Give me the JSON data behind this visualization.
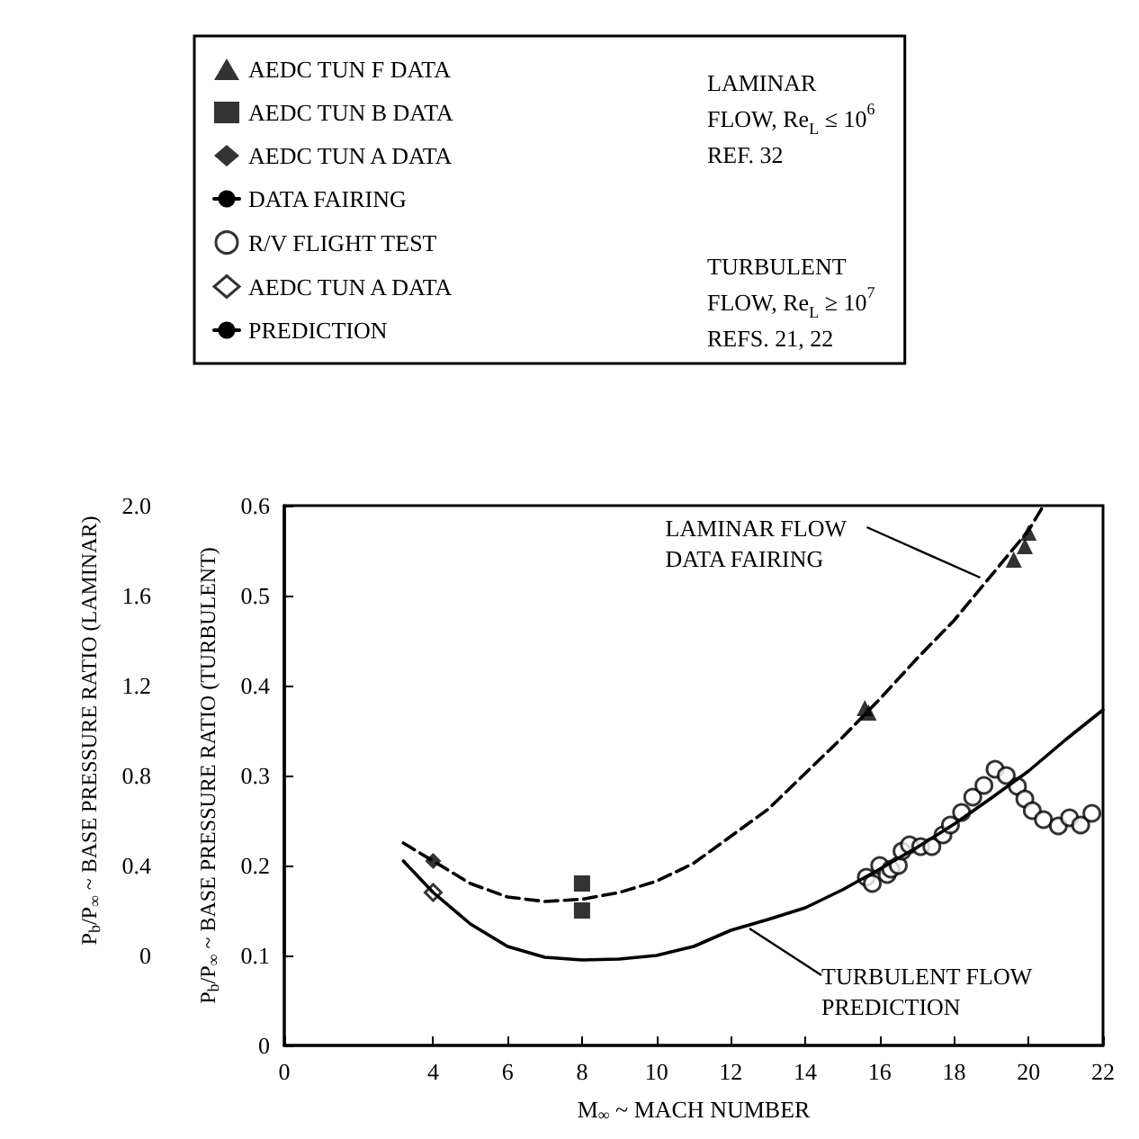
{
  "chart_data": {
    "type": "scatter",
    "xlabel": "M$_{∞}$ ~ MACH NUMBER",
    "ylabel": "P$_{b}$/P$_{∞}$ ~ BASE PRESSURE RATIO (TURBULENT)",
    "y2label": "P$_{b}$/P$_{∞}$ ~ BASE PRESSURE RATIO (LAMINAR)",
    "xlim": [
      0,
      22
    ],
    "xticks": [
      0,
      4,
      6,
      8,
      10,
      12,
      14,
      16,
      18,
      20,
      22
    ],
    "ylim": [
      0,
      0.6
    ],
    "yticks": [
      0,
      0.1,
      0.2,
      0.3,
      0.4,
      0.5,
      0.6
    ],
    "y2lim": [
      0,
      2.0
    ],
    "y2ticks": [
      0,
      0.4,
      0.8,
      1.2,
      1.6,
      {
        "value": 2,
        "label": "2.0"
      }
    ],
    "grid": false,
    "legend": "top",
    "series": [
      {
        "name": "AEDC TUN F DATA",
        "axis": "y2",
        "marker": "triangle",
        "color": "#000000",
        "x": [
          15.6,
          15.7,
          19.6,
          19.9,
          20.0
        ],
        "values": [
          1.1,
          1.08,
          1.76,
          1.82,
          1.88
        ]
      },
      {
        "name": "AEDC TUN B DATA",
        "axis": "y2",
        "marker": "square",
        "color": "#000000",
        "x": [
          8,
          8
        ],
        "values": [
          0.32,
          0.2
        ]
      },
      {
        "name": "AEDC TUN A DATA",
        "axis": "y2",
        "marker": "diamond",
        "color": "#000000",
        "x": [
          4
        ],
        "values": [
          0.42
        ]
      },
      {
        "name": "DATA FAIRING",
        "type": "line",
        "axis": "y2",
        "marker": "none",
        "line_style": "dashed",
        "color": "#000000",
        "x": [
          3.2,
          4,
          5,
          6,
          7,
          8,
          9,
          10,
          11,
          12,
          13,
          14,
          15,
          16,
          17,
          18,
          19,
          20,
          20.4
        ],
        "values": [
          0.5,
          0.42,
          0.32,
          0.26,
          0.24,
          0.25,
          0.28,
          0.33,
          0.41,
          0.53,
          0.65,
          0.81,
          0.97,
          1.14,
          1.32,
          1.49,
          1.69,
          1.89,
          2.0
        ]
      },
      {
        "name": "R/V FLIGHT TEST",
        "marker": "circle",
        "color": "#000000",
        "x": [
          15.64,
          15.8,
          16.0,
          16.2,
          16.3,
          16.5,
          16.6,
          16.8,
          17.1,
          17.4,
          17.7,
          17.9,
          18.2,
          18.5,
          18.8,
          19.1,
          19.4,
          19.7,
          19.9,
          20.1,
          20.4,
          20.8,
          21.1,
          21.4,
          21.7
        ],
        "values": [
          0.187,
          0.18,
          0.2,
          0.19,
          0.196,
          0.2,
          0.216,
          0.223,
          0.221,
          0.221,
          0.234,
          0.245,
          0.259,
          0.276,
          0.289,
          0.307,
          0.3,
          0.288,
          0.274,
          0.261,
          0.251,
          0.244,
          0.253,
          0.245,
          0.258
        ]
      },
      {
        "name": "AEDC TUN A DATA",
        "marker": "diamond",
        "color": "#000000",
        "x": [
          4
        ],
        "values": [
          0.17
        ]
      },
      {
        "name": "PREDICTION",
        "type": "line",
        "marker": "none",
        "line_style": "solid",
        "color": "#000000",
        "x": [
          3.2,
          4,
          5,
          6,
          7,
          8,
          9,
          10,
          11,
          12,
          13,
          14,
          15,
          16,
          17,
          18,
          19,
          20,
          21,
          22
        ],
        "values": [
          0.205,
          0.17,
          0.135,
          0.11,
          0.098,
          0.095,
          0.096,
          0.1,
          0.11,
          0.128,
          0.14,
          0.153,
          0.173,
          0.196,
          0.22,
          0.246,
          0.275,
          0.305,
          0.34,
          0.373
        ]
      }
    ],
    "annotations": [
      "LAMINAR\nFLOW, Re$_{L}$ ≤ 10$^{6}$\nREF. 32",
      "TURBULENT\nFLOW, Re$_{L}$ ≥ 10$^{7}$\nREFS. 21, 22",
      {
        "text": "LAMINAR FLOW\nDATA FAIRING",
        "x": 18.7,
        "y": 0.52
      },
      {
        "text": "TURBULENT FLOW\nPREDICTION",
        "x": 12.5,
        "y": 0.13
      }
    ]
  }
}
